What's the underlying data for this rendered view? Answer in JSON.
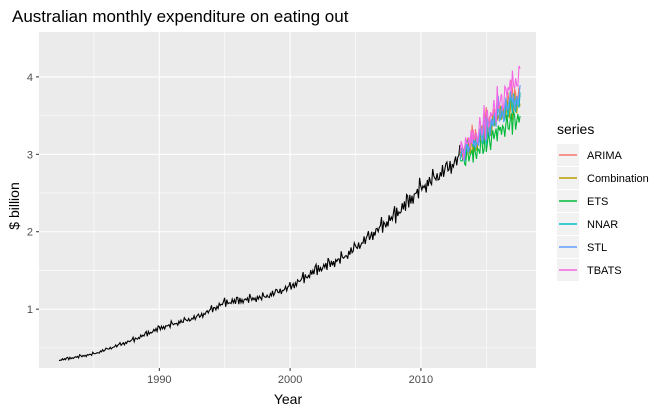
{
  "chart_data": {
    "type": "line",
    "title": "Australian monthly expenditure on eating out",
    "xlabel": "Year",
    "ylabel": "$ billion",
    "xlim": [
      1980.8,
      2018.8
    ],
    "ylim": [
      0.24,
      4.58
    ],
    "x_ticks": [
      1990,
      2000,
      2010
    ],
    "y_ticks": [
      1,
      2,
      3,
      4
    ],
    "grid": true,
    "legend": {
      "title": "series",
      "position": "right"
    },
    "actual": {
      "name": "",
      "color": "#000000",
      "start": 1982.33,
      "end": 2013.0,
      "step": 0.0833,
      "anchors": [
        [
          1982.33,
          0.34
        ],
        [
          1985,
          0.42
        ],
        [
          1988,
          0.6
        ],
        [
          1990,
          0.75
        ],
        [
          1993,
          0.9
        ],
        [
          1995,
          1.08
        ],
        [
          1998,
          1.15
        ],
        [
          2000,
          1.28
        ],
        [
          2002,
          1.5
        ],
        [
          2004,
          1.65
        ],
        [
          2006,
          1.92
        ],
        [
          2008,
          2.2
        ],
        [
          2010,
          2.55
        ],
        [
          2012,
          2.8
        ],
        [
          2013,
          2.95
        ]
      ],
      "seasonal_amplitude": 0.1
    },
    "forecast": {
      "start": 2013.0,
      "end": 2017.6,
      "step": 0.0833
    },
    "series": [
      {
        "name": "ARIMA",
        "color": "#F8766D",
        "anchors": [
          [
            2013,
            3.02
          ],
          [
            2014,
            3.15
          ],
          [
            2015,
            3.35
          ],
          [
            2016,
            3.55
          ],
          [
            2017,
            3.7
          ],
          [
            2017.6,
            3.78
          ]
        ],
        "amplitude": 0.16
      },
      {
        "name": "Combination",
        "color": "#B79F00",
        "anchors": [
          [
            2013,
            3.0
          ],
          [
            2014,
            3.1
          ],
          [
            2015,
            3.3
          ],
          [
            2016,
            3.48
          ],
          [
            2017,
            3.62
          ],
          [
            2017.6,
            3.68
          ]
        ],
        "amplitude": 0.15
      },
      {
        "name": "ETS",
        "color": "#00BA38",
        "anchors": [
          [
            2013,
            2.92
          ],
          [
            2014,
            3.0
          ],
          [
            2015,
            3.15
          ],
          [
            2016,
            3.3
          ],
          [
            2017,
            3.42
          ],
          [
            2017.6,
            3.48
          ]
        ],
        "amplitude": 0.14
      },
      {
        "name": "NNAR",
        "color": "#00BFC4",
        "anchors": [
          [
            2013,
            3.0
          ],
          [
            2014,
            3.12
          ],
          [
            2015,
            3.3
          ],
          [
            2016,
            3.48
          ],
          [
            2017,
            3.62
          ],
          [
            2017.6,
            3.68
          ]
        ],
        "amplitude": 0.15
      },
      {
        "name": "STL",
        "color": "#619CFF",
        "anchors": [
          [
            2013,
            3.0
          ],
          [
            2014,
            3.12
          ],
          [
            2015,
            3.32
          ],
          [
            2016,
            3.52
          ],
          [
            2017,
            3.68
          ],
          [
            2017.6,
            3.74
          ]
        ],
        "amplitude": 0.15
      },
      {
        "name": "TBATS",
        "color": "#F564E3",
        "anchors": [
          [
            2013,
            3.05
          ],
          [
            2014,
            3.2
          ],
          [
            2015,
            3.42
          ],
          [
            2016,
            3.65
          ],
          [
            2017,
            3.9
          ],
          [
            2017.6,
            4.0
          ]
        ],
        "amplitude": 0.22
      }
    ]
  }
}
